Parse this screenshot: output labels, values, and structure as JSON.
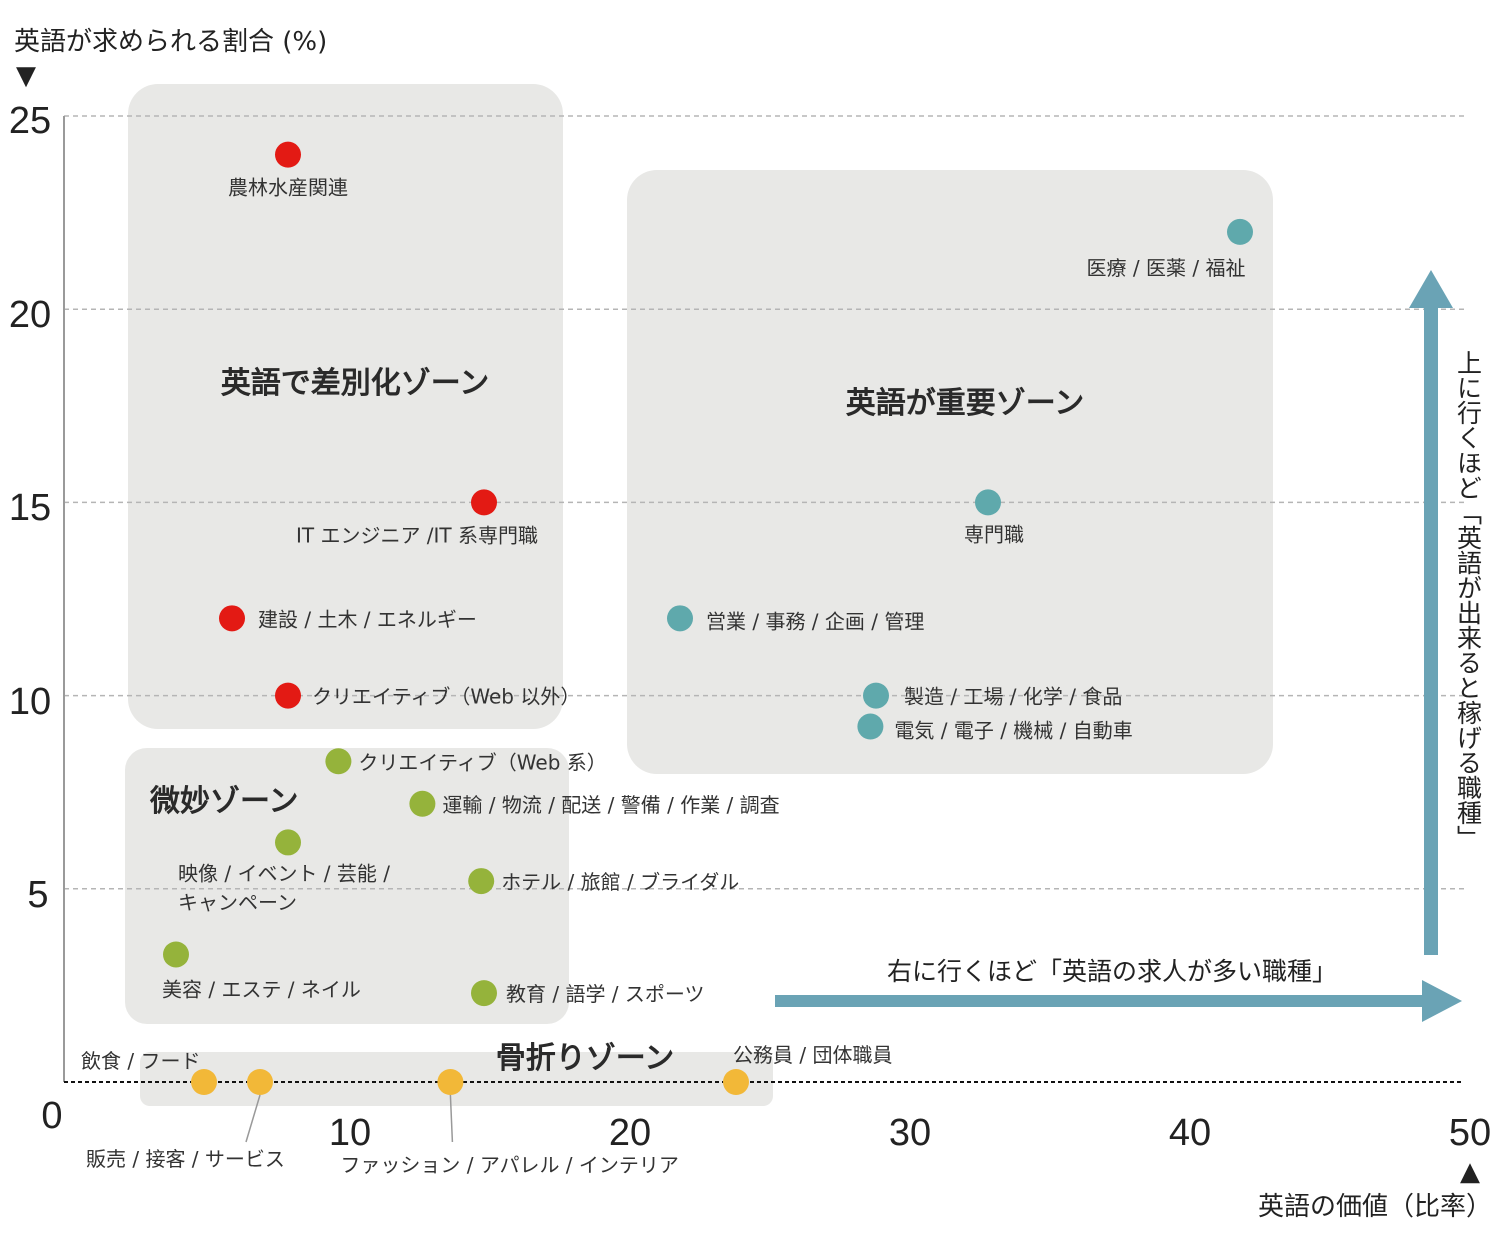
{
  "chart_data": {
    "type": "scatter",
    "xlabel": "英語の価値（比率）",
    "ylabel": "英語が求められる割合 (%)",
    "xlim": [
      0,
      50
    ],
    "ylim": [
      0,
      25
    ],
    "x_ticks": [
      "0",
      "10",
      "20",
      "30",
      "40",
      "50"
    ],
    "y_ticks": [
      "5",
      "10",
      "15",
      "20",
      "25"
    ],
    "grid": "horizontal dashed",
    "axis_markers": {
      "y": "▼",
      "x": "▲"
    },
    "zones": [
      {
        "name": "英語で差別化ゾーン",
        "color": "#e8e8e6"
      },
      {
        "name": "英語が重要ゾーン",
        "color": "#e8e8e6"
      },
      {
        "name": "微妙ゾーン",
        "color": "#e8e8e6"
      },
      {
        "name": "骨折りゾーン",
        "color": "#e8e8e6"
      }
    ],
    "series": [
      {
        "name": "英語で差別化ゾーン",
        "color": "#e31a14",
        "points": [
          {
            "label": "農林水産関連",
            "x": 8,
            "y": 24
          },
          {
            "label": "IT エンジニア /IT 系専門職",
            "x": 15,
            "y": 15
          },
          {
            "label": "建設 / 土木 / エネルギー",
            "x": 6,
            "y": 12
          },
          {
            "label": "クリエイティブ（Web 以外）",
            "x": 8,
            "y": 10
          }
        ]
      },
      {
        "name": "英語が重要ゾーン",
        "color": "#5fa9ac",
        "points": [
          {
            "label": "医療 / 医薬 / 福祉",
            "x": 42,
            "y": 22
          },
          {
            "label": "専門職",
            "x": 33,
            "y": 15
          },
          {
            "label": "営業 / 事務 / 企画 / 管理",
            "x": 22,
            "y": 12
          },
          {
            "label": "製造 / 工場 / 化学 / 食品",
            "x": 29,
            "y": 10
          },
          {
            "label": "電気 / 電子 / 機械 / 自動車",
            "x": 28.8,
            "y": 9.2
          }
        ]
      },
      {
        "name": "微妙ゾーン",
        "color": "#95b33b",
        "points": [
          {
            "label": "クリエイティブ（Web 系）",
            "x": 9.8,
            "y": 8.3
          },
          {
            "label": "運輸 / 物流 / 配送 / 警備 / 作業 / 調査",
            "x": 12.8,
            "y": 7.2
          },
          {
            "label": "映像 / イベント / 芸能 / キャンペーン",
            "x": 8,
            "y": 6.2
          },
          {
            "label": "ホテル / 旅館 / ブライダル",
            "x": 14.9,
            "y": 5.2
          },
          {
            "label": "美容 / エステ / ネイル",
            "x": 4,
            "y": 3.3
          },
          {
            "label": "教育 / 語学 / スポーツ",
            "x": 15,
            "y": 2.3
          }
        ]
      },
      {
        "name": "骨折りゾーン",
        "color": "#f2b838",
        "points": [
          {
            "label": "飲食 / フード",
            "x": 5,
            "y": 0
          },
          {
            "label": "販売 / 接客 / サービス",
            "x": 7,
            "y": 0
          },
          {
            "label": "ファッション / アパレル / インテリア",
            "x": 13.8,
            "y": 0
          },
          {
            "label": "公務員 / 団体職員",
            "x": 24,
            "y": 0
          }
        ]
      }
    ],
    "annotations": {
      "right_arrow": "右に行くほど「英語の求人が多い職種」",
      "up_arrow": "上に行くほど「英語が出来ると稼げる職種」",
      "arrow_color": "#6aa3b5"
    }
  }
}
